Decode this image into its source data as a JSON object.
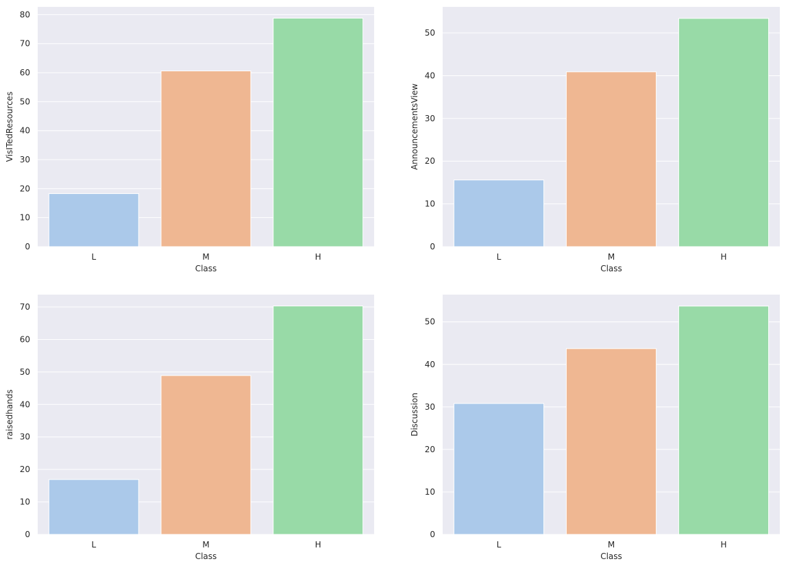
{
  "figure": {
    "background": "#ffffff",
    "axes_facecolor": "#eaeaf2",
    "grid_color": "#ffffff"
  },
  "chart_data": [
    {
      "type": "bar",
      "categories": [
        "L",
        "M",
        "H"
      ],
      "colors": [
        "#abc9ea",
        "#efb792",
        "#98daa7"
      ],
      "values": [
        18.3,
        60.6,
        78.8
      ],
      "title": "",
      "xlabel": "Class",
      "ylabel": "VisITedResources",
      "ylim": [
        0,
        82.7
      ],
      "yticks": [
        0,
        10,
        20,
        30,
        40,
        50,
        60,
        70,
        80
      ],
      "grid": true
    },
    {
      "type": "bar",
      "categories": [
        "L",
        "M",
        "H"
      ],
      "colors": [
        "#abc9ea",
        "#efb792",
        "#98daa7"
      ],
      "values": [
        15.6,
        40.9,
        53.4
      ],
      "title": "",
      "xlabel": "Class",
      "ylabel": "AnnouncementsView",
      "ylim": [
        0,
        56.1
      ],
      "yticks": [
        0,
        10,
        20,
        30,
        40,
        50
      ],
      "grid": true
    },
    {
      "type": "bar",
      "categories": [
        "L",
        "M",
        "H"
      ],
      "colors": [
        "#abc9ea",
        "#efb792",
        "#98daa7"
      ],
      "values": [
        16.9,
        48.9,
        70.3
      ],
      "title": "",
      "xlabel": "Class",
      "ylabel": "raisedhands",
      "ylim": [
        0,
        73.8
      ],
      "yticks": [
        0,
        10,
        20,
        30,
        40,
        50,
        60,
        70
      ],
      "grid": true
    },
    {
      "type": "bar",
      "categories": [
        "L",
        "M",
        "H"
      ],
      "colors": [
        "#abc9ea",
        "#efb792",
        "#98daa7"
      ],
      "values": [
        30.8,
        43.7,
        53.7
      ],
      "title": "",
      "xlabel": "Class",
      "ylabel": "Discussion",
      "ylim": [
        0,
        56.4
      ],
      "yticks": [
        0,
        10,
        20,
        30,
        40,
        50
      ],
      "grid": true
    }
  ]
}
